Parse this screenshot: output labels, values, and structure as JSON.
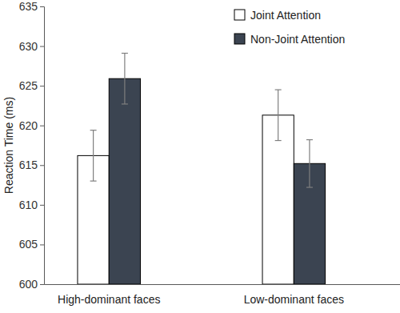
{
  "chart_data": {
    "type": "bar",
    "y_label": "Reaction Time (ms)",
    "categories": [
      "High-dominant faces",
      "Low-dominant faces"
    ],
    "series": [
      {
        "name": "Joint Attention",
        "color": "#ffffff",
        "values": [
          616.2,
          621.3
        ],
        "errors": [
          3.2,
          3.2
        ]
      },
      {
        "name": "Non-Joint Attention",
        "color": "#3b4451",
        "values": [
          625.9,
          615.2
        ],
        "errors": [
          3.2,
          3.0
        ]
      }
    ],
    "ylim": [
      600,
      635
    ],
    "yticks": [
      600,
      605,
      610,
      615,
      620,
      625,
      630,
      635
    ],
    "grid": false,
    "legend": "top-right"
  }
}
